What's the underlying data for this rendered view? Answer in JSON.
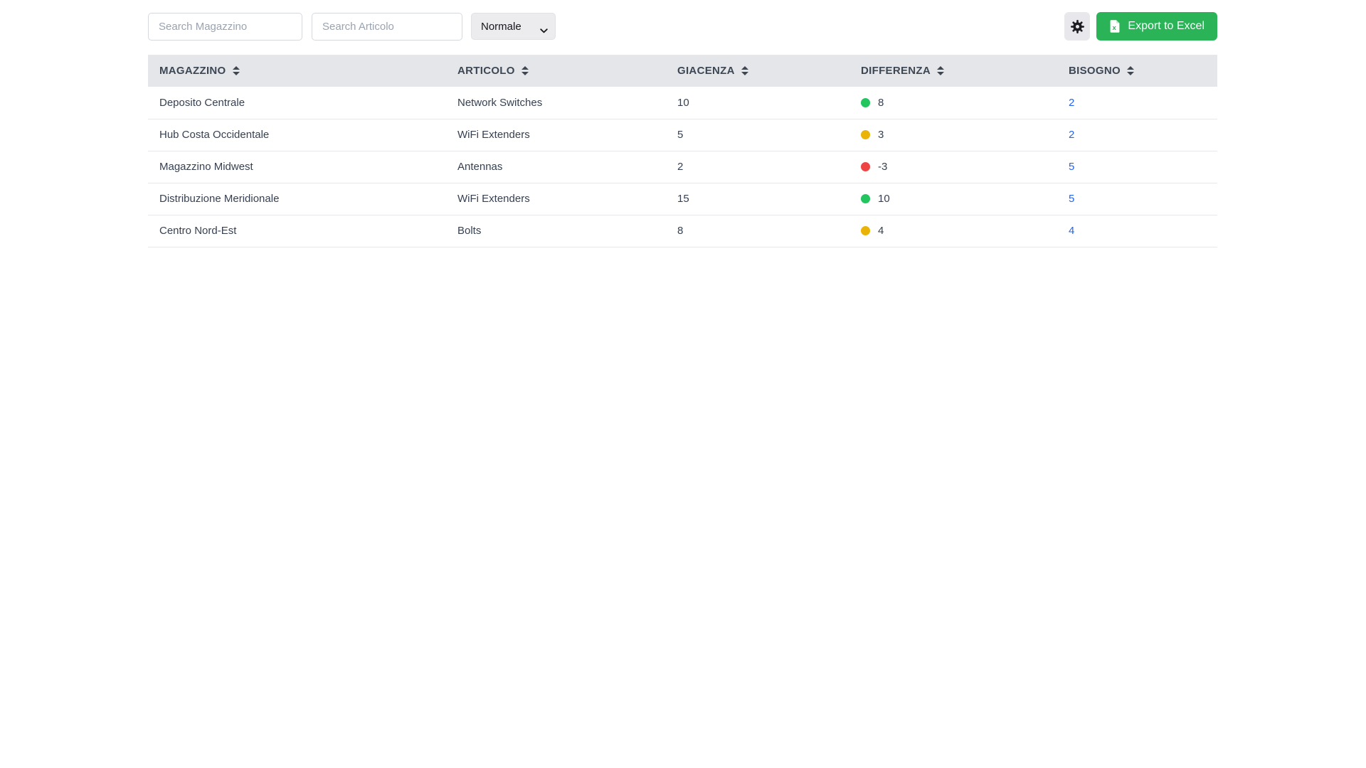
{
  "toolbar": {
    "search_magazzino": {
      "placeholder": "Search Magazzino",
      "value": ""
    },
    "search_articolo": {
      "placeholder": "Search Articolo",
      "value": ""
    },
    "mode_select": {
      "value": "Normale"
    },
    "export_button": {
      "label": "Export to Excel"
    }
  },
  "colors": {
    "export_green": "#2bb457",
    "link_blue": "#2563eb",
    "header_bg": "#e5e6ea",
    "row_border": "#e7e8eb",
    "status": {
      "green": "#22c55e",
      "yellow": "#eab308",
      "red": "#ef4444"
    }
  },
  "table": {
    "columns": [
      {
        "key": "magazzino",
        "label": "MAGAZZINO",
        "sortable": true
      },
      {
        "key": "articolo",
        "label": "ARTICOLO",
        "sortable": true
      },
      {
        "key": "giacenza",
        "label": "GIACENZA",
        "sortable": true
      },
      {
        "key": "differenza",
        "label": "DIFFERENZA",
        "sortable": true
      },
      {
        "key": "bisogno",
        "label": "BISOGNO",
        "sortable": true
      }
    ],
    "rows": [
      {
        "magazzino": "Deposito Centrale",
        "articolo": "Network Switches",
        "giacenza": "10",
        "differenza": {
          "value": "8",
          "status": "green"
        },
        "bisogno": "2"
      },
      {
        "magazzino": "Hub Costa Occidentale",
        "articolo": "WiFi Extenders",
        "giacenza": "5",
        "differenza": {
          "value": "3",
          "status": "yellow"
        },
        "bisogno": "2"
      },
      {
        "magazzino": "Magazzino Midwest",
        "articolo": "Antennas",
        "giacenza": "2",
        "differenza": {
          "value": "-3",
          "status": "red"
        },
        "bisogno": "5"
      },
      {
        "magazzino": "Distribuzione Meridionale",
        "articolo": "WiFi Extenders",
        "giacenza": "15",
        "differenza": {
          "value": "10",
          "status": "green"
        },
        "bisogno": "5"
      },
      {
        "magazzino": "Centro Nord-Est",
        "articolo": "Bolts",
        "giacenza": "8",
        "differenza": {
          "value": "4",
          "status": "yellow"
        },
        "bisogno": "4"
      }
    ]
  }
}
